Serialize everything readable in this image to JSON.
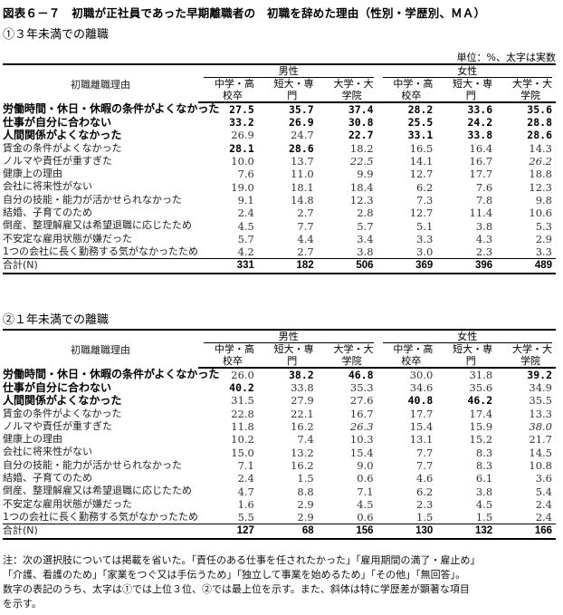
{
  "title": "図表６－７　初職が正社員であった早期離職者の　初職を辞めた理由（性別・学歴別、ＭＡ）",
  "unit": "単位：%、太字は実数",
  "header": {
    "reason_label": "初職離職理由",
    "groups": [
      "男性",
      "女性"
    ],
    "sub": [
      {
        "l1": "中学・高",
        "l2": "校卒"
      },
      {
        "l1": "短大・専",
        "l2": "門"
      },
      {
        "l1": "大学・大",
        "l2": "学院"
      }
    ]
  },
  "sections": [
    {
      "title": "①３年未満での離職",
      "rows": [
        {
          "label": "労働時間・休日・休暇の条件がよくなかった",
          "bold_label": true,
          "values": [
            "27.5",
            "35.7",
            "37.4",
            "28.2",
            "33.6",
            "35.6"
          ],
          "style": [
            "b",
            "b",
            "b",
            "b",
            "b",
            "b"
          ]
        },
        {
          "label": "仕事が自分に合わない",
          "bold_label": true,
          "values": [
            "33.2",
            "26.9",
            "30.8",
            "25.5",
            "24.2",
            "28.8"
          ],
          "style": [
            "b",
            "b",
            "b",
            "b",
            "b",
            "b"
          ]
        },
        {
          "label": "人間関係がよくなかった",
          "bold_label": true,
          "values": [
            "26.9",
            "24.7",
            "22.7",
            "33.1",
            "33.8",
            "28.6"
          ],
          "style": [
            "",
            "",
            "b",
            "b",
            "b",
            "b"
          ]
        },
        {
          "label": "賃金の条件がよくなかった",
          "bold_label": false,
          "values": [
            "28.1",
            "28.6",
            "18.2",
            "16.5",
            "16.4",
            "14.3"
          ],
          "style": [
            "b",
            "b",
            "",
            "",
            "",
            ""
          ]
        },
        {
          "label": "ノルマや責任が重すぎた",
          "bold_label": false,
          "values": [
            "10.0",
            "13.7",
            "22.5",
            "14.1",
            "16.7",
            "26.2"
          ],
          "style": [
            "",
            "",
            "i",
            "",
            "",
            "i"
          ]
        },
        {
          "label": "健康上の理由",
          "bold_label": false,
          "values": [
            "7.6",
            "11.0",
            "9.9",
            "12.7",
            "17.7",
            "18.8"
          ],
          "style": [
            "",
            "",
            "",
            "",
            "",
            ""
          ]
        },
        {
          "label": "会社に将来性がない",
          "bold_label": false,
          "values": [
            "19.0",
            "18.1",
            "18.4",
            "6.2",
            "7.6",
            "12.3"
          ],
          "style": [
            "",
            "",
            "",
            "",
            "",
            ""
          ]
        },
        {
          "label": "自分の技能・能力が活かせられなかった",
          "bold_label": false,
          "values": [
            "9.1",
            "14.8",
            "12.3",
            "7.3",
            "7.8",
            "9.8"
          ],
          "style": [
            "",
            "",
            "",
            "",
            "",
            ""
          ]
        },
        {
          "label": "結婚、子育てのため",
          "bold_label": false,
          "values": [
            "2.4",
            "2.7",
            "2.8",
            "12.7",
            "11.4",
            "10.6"
          ],
          "style": [
            "",
            "",
            "",
            "",
            "",
            ""
          ]
        },
        {
          "label": "倒産、整理解雇又は希望退職に応じたため",
          "bold_label": false,
          "values": [
            "4.5",
            "7.7",
            "5.7",
            "5.1",
            "3.8",
            "5.3"
          ],
          "style": [
            "",
            "",
            "",
            "",
            "",
            ""
          ]
        },
        {
          "label": "不安定な雇用状態が嫌だった",
          "bold_label": false,
          "values": [
            "5.7",
            "4.4",
            "3.4",
            "3.3",
            "4.3",
            "2.9"
          ],
          "style": [
            "",
            "",
            "",
            "",
            "",
            ""
          ]
        },
        {
          "label": "1つの会社に長く勤務する気がなかったため",
          "bold_label": false,
          "values": [
            "4.2",
            "2.7",
            "3.8",
            "3.0",
            "2.3",
            "3.3"
          ],
          "style": [
            "",
            "",
            "",
            "",
            "",
            ""
          ]
        }
      ],
      "total": {
        "label": "合計(N)",
        "values": [
          "331",
          "182",
          "506",
          "369",
          "396",
          "489"
        ]
      }
    },
    {
      "title": "②１年未満での離職",
      "rows": [
        {
          "label": "労働時間・休日・休暇の条件がよくなかった",
          "bold_label": true,
          "values": [
            "26.0",
            "38.2",
            "46.8",
            "30.0",
            "31.8",
            "39.2"
          ],
          "style": [
            "",
            "b",
            "b",
            "",
            "",
            "b"
          ]
        },
        {
          "label": "仕事が自分に合わない",
          "bold_label": true,
          "values": [
            "40.2",
            "33.8",
            "35.3",
            "34.6",
            "35.6",
            "34.9"
          ],
          "style": [
            "b",
            "",
            "",
            "",
            "",
            ""
          ]
        },
        {
          "label": "人間関係がよくなかった",
          "bold_label": true,
          "values": [
            "31.5",
            "27.9",
            "27.6",
            "40.8",
            "46.2",
            "35.5"
          ],
          "style": [
            "",
            "",
            "",
            "b",
            "b",
            ""
          ]
        },
        {
          "label": "賃金の条件がよくなかった",
          "bold_label": false,
          "values": [
            "22.8",
            "22.1",
            "16.7",
            "17.7",
            "17.4",
            "13.3"
          ],
          "style": [
            "",
            "",
            "",
            "",
            "",
            ""
          ]
        },
        {
          "label": "ノルマや責任が重すぎた",
          "bold_label": false,
          "values": [
            "11.8",
            "16.2",
            "26.3",
            "15.4",
            "15.9",
            "38.0"
          ],
          "style": [
            "",
            "",
            "i",
            "",
            "",
            "i"
          ]
        },
        {
          "label": "健康上の理由",
          "bold_label": false,
          "values": [
            "10.2",
            "7.4",
            "10.3",
            "13.1",
            "15.2",
            "21.7"
          ],
          "style": [
            "",
            "",
            "",
            "",
            "",
            ""
          ]
        },
        {
          "label": "会社に将来性がない",
          "bold_label": false,
          "values": [
            "15.0",
            "13.2",
            "15.4",
            "7.7",
            "8.3",
            "14.5"
          ],
          "style": [
            "",
            "",
            "",
            "",
            "",
            ""
          ]
        },
        {
          "label": "自分の技能・能力が活かせられなかった",
          "bold_label": false,
          "values": [
            "7.1",
            "16.2",
            "9.0",
            "7.7",
            "8.3",
            "10.8"
          ],
          "style": [
            "",
            "",
            "",
            "",
            "",
            ""
          ]
        },
        {
          "label": "結婚、子育てのため",
          "bold_label": false,
          "values": [
            "2.4",
            "1.5",
            "0.6",
            "4.6",
            "6.1",
            "3.6"
          ],
          "style": [
            "",
            "",
            "",
            "",
            "",
            ""
          ]
        },
        {
          "label": "倒産、整理解雇又は希望退職に応じたため",
          "bold_label": false,
          "values": [
            "4.7",
            "8.8",
            "7.1",
            "6.2",
            "3.8",
            "5.4"
          ],
          "style": [
            "",
            "",
            "",
            "",
            "",
            ""
          ]
        },
        {
          "label": "不安定な雇用状態が嫌だった",
          "bold_label": false,
          "values": [
            "1.6",
            "2.9",
            "4.5",
            "2.3",
            "4.5",
            "2.4"
          ],
          "style": [
            "",
            "",
            "",
            "",
            "",
            ""
          ]
        },
        {
          "label": "1つの会社に長く勤務する気がなかったため",
          "bold_label": false,
          "values": [
            "5.5",
            "2.9",
            "0.6",
            "1.5",
            "1.5",
            "2.4"
          ],
          "style": [
            "",
            "",
            "",
            "",
            "",
            ""
          ]
        }
      ],
      "total": {
        "label": "合計(N)",
        "values": [
          "127",
          "68",
          "156",
          "130",
          "132",
          "166"
        ]
      }
    }
  ],
  "notes": [
    "注：次の選択肢については掲載を省いた。「責任のある仕事を任されたかった」「雇用期間の満了・雇止め」",
    "「介護、看護のため」「家業をつぐ又は手伝うため」「独立して事業を始めるため」「その他」「無回答」。",
    "数字の表記のうち、太字は①では上位３位、②では最上位を示す。また、斜体は特に学歴差が顕著な項目",
    "を示す。"
  ]
}
